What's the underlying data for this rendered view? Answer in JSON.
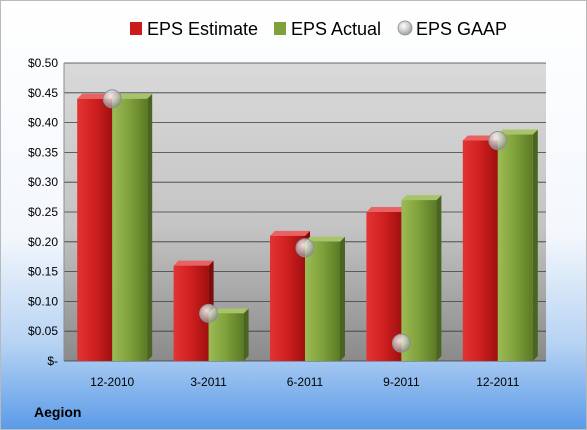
{
  "chart_data": {
    "type": "bar",
    "categories": [
      "12-2010",
      "3-2011",
      "6-2011",
      "9-2011",
      "12-2011"
    ],
    "series": [
      {
        "name": "EPS Estimate",
        "kind": "bar",
        "color": "#cc1b1b",
        "values": [
          0.44,
          0.16,
          0.21,
          0.25,
          0.37
        ]
      },
      {
        "name": "EPS Actual",
        "kind": "bar",
        "color": "#7fa03a",
        "values": [
          0.44,
          0.08,
          0.2,
          0.27,
          0.38
        ]
      },
      {
        "name": "EPS GAAP",
        "kind": "marker",
        "color": "#b8b8b8",
        "values": [
          0.44,
          0.08,
          0.19,
          0.03,
          0.37
        ]
      }
    ],
    "yticks": [
      "$-",
      "$0.05",
      "$0.10",
      "$0.15",
      "$0.20",
      "$0.25",
      "$0.30",
      "$0.35",
      "$0.40",
      "$0.45",
      "$0.50"
    ],
    "ylim": [
      0,
      0.5
    ],
    "grid": true,
    "legend_position": "top",
    "company": "Aegion"
  }
}
